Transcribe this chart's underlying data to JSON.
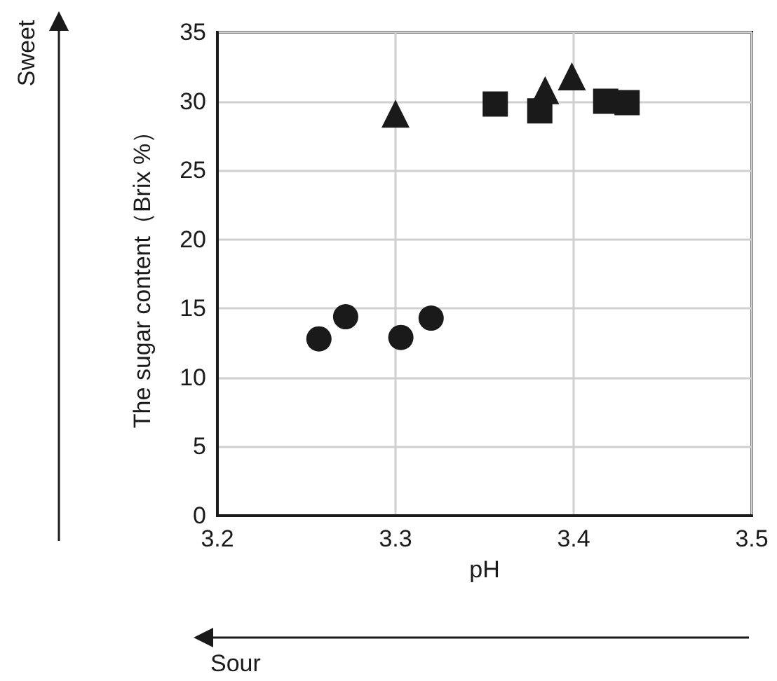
{
  "chart_data": {
    "type": "scatter",
    "xlabel": "pH",
    "ylabel": "The sugar content（Brix %）",
    "annotations": [
      "Sweet",
      "Sour"
    ],
    "xlim": [
      3.2,
      3.5
    ],
    "xticks": [
      3.2,
      3.3,
      3.4,
      3.5
    ],
    "ylim": [
      0,
      35
    ],
    "yticks": [
      0,
      5,
      10,
      15,
      20,
      25,
      30,
      35
    ],
    "grid": true,
    "series": [
      {
        "color": "#1a1a1a",
        "marker": "circle",
        "x": [
          3.257,
          3.272,
          3.303,
          3.32
        ],
        "values": [
          12.8,
          14.4,
          12.9,
          14.3
        ]
      },
      {
        "color": "#1a1a1a",
        "marker": "triangle",
        "x": [
          3.3,
          3.384,
          3.399
        ],
        "values": [
          29.1,
          30.8,
          31.8
        ]
      },
      {
        "color": "#1a1a1a",
        "marker": "square",
        "x": [
          3.356,
          3.381,
          3.418,
          3.43
        ],
        "values": [
          29.8,
          29.3,
          30.0,
          29.9
        ]
      }
    ]
  }
}
